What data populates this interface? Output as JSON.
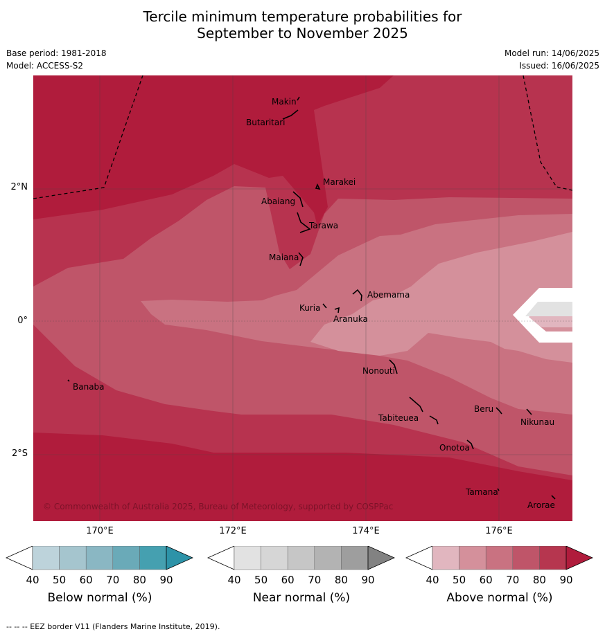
{
  "title_line1": "Tercile minimum temperature probabilities for",
  "title_line2": "September to November 2025",
  "base_period": "Base period: 1981-2018",
  "model": "Model: ACCESS-S2",
  "model_run": "Model run: 14/06/2025",
  "issued": "Issued: 16/06/2025",
  "copyright": "© Commonwealth of Australia 2025, Bureau of Meteorology, supported by COSPPac",
  "lat_ticks": [
    "2°N",
    "0°",
    "2°S"
  ],
  "lon_ticks": [
    "170°E",
    "172°E",
    "174°E",
    "176°E"
  ],
  "places": [
    "Makin",
    "Butaritari",
    "Marakei",
    "Abaiang",
    "Tarawa",
    "Maiana",
    "Abemama",
    "Kuria",
    "Aranuka",
    "Nonouti",
    "Banaba",
    "Tabiteuea",
    "Beru",
    "Nikunau",
    "Onotoa",
    "Tamana",
    "Arorae"
  ],
  "colorbars": [
    {
      "label": "Below normal (%)",
      "ticks": [
        "40",
        "50",
        "60",
        "70",
        "80",
        "90"
      ],
      "colors": [
        "#ffffff",
        "#bdd3db",
        "#a5c5ce",
        "#8ab7c3",
        "#6aaab8",
        "#45a0b0",
        "#2d93a8"
      ]
    },
    {
      "label": "Near normal (%)",
      "ticks": [
        "40",
        "50",
        "60",
        "70",
        "80",
        "90"
      ],
      "colors": [
        "#ffffff",
        "#e2e2e2",
        "#d6d6d6",
        "#c6c6c6",
        "#b3b3b3",
        "#9e9e9e",
        "#828282"
      ]
    },
    {
      "label": "Above normal (%)",
      "ticks": [
        "40",
        "50",
        "60",
        "70",
        "80",
        "90"
      ],
      "colors": [
        "#ffffff",
        "#e1b6bf",
        "#d4909b",
        "#c97281",
        "#bf5569",
        "#b6364f",
        "#b01c3c"
      ]
    }
  ],
  "footer": "--  --  -- EEZ border V11 (Flanders Marine Institute, 2019)."
}
